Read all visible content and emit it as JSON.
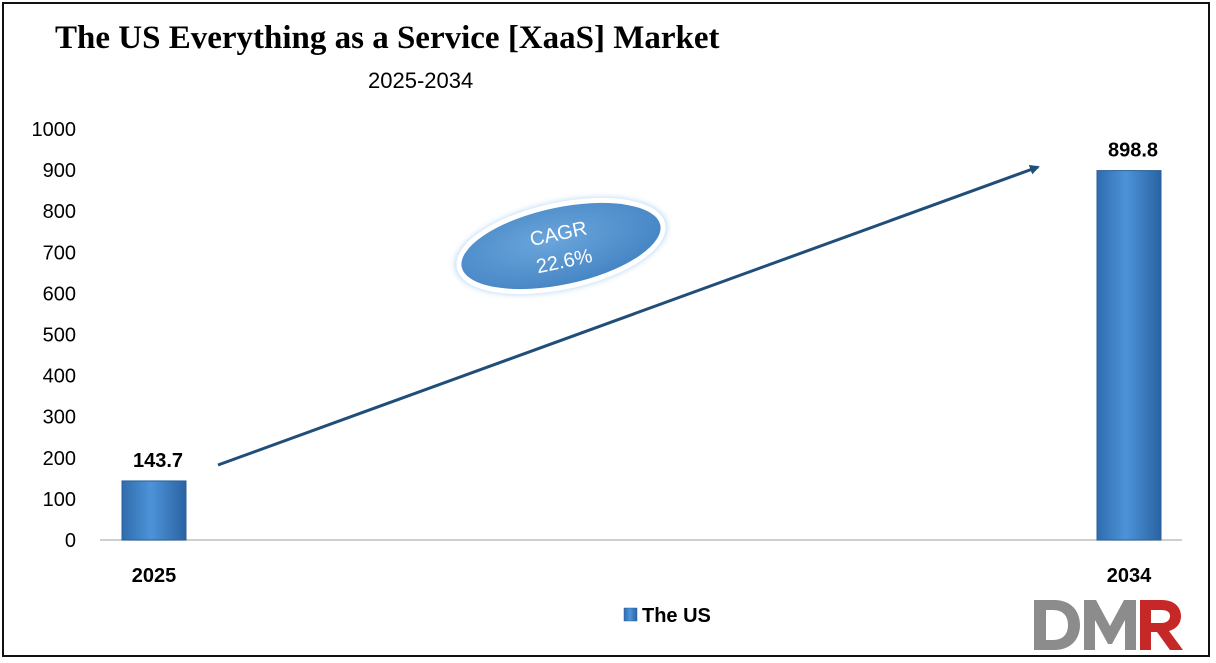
{
  "page": {
    "title": "The US Everything as a Service [XaaS] Market",
    "subtitle": "2025-2034"
  },
  "chart_data": {
    "type": "bar",
    "title": "The US Everything as a Service [XaaS] Market",
    "subtitle": "2025-2034",
    "categories": [
      "2025",
      "2034"
    ],
    "series": [
      {
        "name": "The US",
        "values": [
          143.7,
          898.8
        ],
        "color": "#3a7ec4"
      }
    ],
    "data_labels": [
      "143.7",
      "898.8"
    ],
    "xlabel": "",
    "ylabel": "",
    "ylim": [
      0,
      1000
    ],
    "yticks": [
      0,
      100,
      200,
      300,
      400,
      500,
      600,
      700,
      800,
      900,
      1000
    ],
    "grid": false,
    "legend": {
      "position": "bottom-center",
      "entries": [
        "The US"
      ]
    },
    "annotation": {
      "line1": "CAGR",
      "line2": "22.6%"
    }
  },
  "logo": {
    "text": "DMR",
    "colors": {
      "d": "#8c8c8c",
      "m": "#8c8c8c",
      "r": "#c62828"
    }
  }
}
